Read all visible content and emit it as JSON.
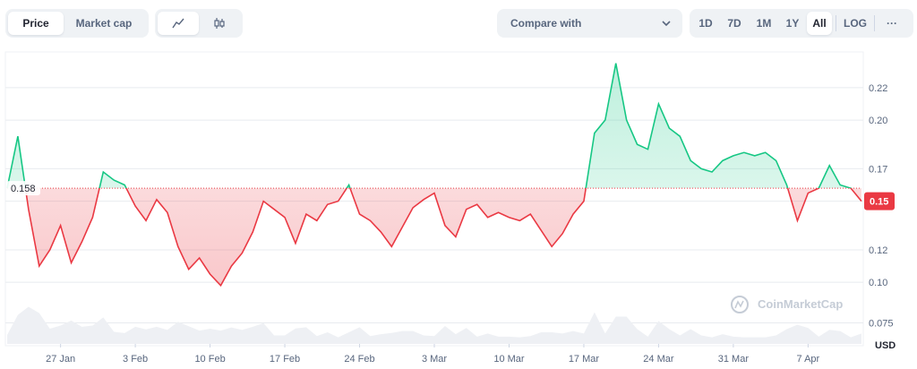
{
  "toolbar": {
    "price_label": "Price",
    "market_cap_label": "Market cap",
    "line_icon": "line-chart-icon",
    "candle_icon": "candlestick-icon",
    "compare_label": "Compare with",
    "ranges": [
      "1D",
      "7D",
      "1M",
      "1Y",
      "All"
    ],
    "active_range": "All",
    "log_label": "LOG",
    "more_label": "···"
  },
  "chart_data": {
    "type": "line",
    "title": "",
    "xlabel": "",
    "ylabel": "USD",
    "currency_label": "USD",
    "x_ticks": [
      "27 Jan",
      "3 Feb",
      "10 Feb",
      "17 Feb",
      "24 Feb",
      "3 Mar",
      "10 Mar",
      "17 Mar",
      "24 Mar",
      "31 Mar",
      "7 Apr"
    ],
    "y_ticks": [
      "0.075",
      "0.10",
      "0.12",
      "0.15",
      "0.17",
      "0.20",
      "0.22"
    ],
    "ylim": [
      0.062,
      0.242
    ],
    "baseline_value": 0.158,
    "baseline_label": "0.158",
    "current_value": 0.15,
    "current_label": "0.15",
    "colors": {
      "up": "#16c784",
      "down": "#ea3943",
      "grid": "#e8ebef",
      "volume": "#d8dde5"
    },
    "watermark": "CoinMarketCap",
    "series": [
      {
        "x": [
          "Jan 22",
          "Jan 23",
          "Jan 24",
          "Jan 25",
          "Jan 26",
          "Jan 27",
          "Jan 28",
          "Jan 29",
          "Jan 30",
          "Jan 31",
          "Feb 1",
          "Feb 2",
          "Feb 3",
          "Feb 4",
          "Feb 5",
          "Feb 6",
          "Feb 7",
          "Feb 8",
          "Feb 9",
          "Feb 10",
          "Feb 11",
          "Feb 12",
          "Feb 13",
          "Feb 14",
          "Feb 15",
          "Feb 16",
          "Feb 17",
          "Feb 18",
          "Feb 19",
          "Feb 20",
          "Feb 21",
          "Feb 22",
          "Feb 23",
          "Feb 24",
          "Feb 25",
          "Feb 26",
          "Feb 27",
          "Feb 28",
          "Mar 1",
          "Mar 2",
          "Mar 3",
          "Mar 4",
          "Mar 5",
          "Mar 6",
          "Mar 7",
          "Mar 8",
          "Mar 9",
          "Mar 10",
          "Mar 11",
          "Mar 12",
          "Mar 13",
          "Mar 14",
          "Mar 15",
          "Mar 16",
          "Mar 17",
          "Mar 18",
          "Mar 19",
          "Mar 20",
          "Mar 21",
          "Mar 22",
          "Mar 23",
          "Mar 24",
          "Mar 25",
          "Mar 26",
          "Mar 27",
          "Mar 28",
          "Mar 29",
          "Mar 30",
          "Mar 31",
          "Apr 1",
          "Apr 2",
          "Apr 3",
          "Apr 4",
          "Apr 5",
          "Apr 6",
          "Apr 7",
          "Apr 8",
          "Apr 9",
          "Apr 10",
          "Apr 11",
          "Apr 12"
        ],
        "values": [
          0.158,
          0.19,
          0.145,
          0.11,
          0.12,
          0.135,
          0.112,
          0.125,
          0.14,
          0.168,
          0.163,
          0.16,
          0.147,
          0.138,
          0.151,
          0.143,
          0.122,
          0.108,
          0.115,
          0.105,
          0.098,
          0.11,
          0.118,
          0.131,
          0.15,
          0.145,
          0.14,
          0.124,
          0.142,
          0.138,
          0.148,
          0.15,
          0.16,
          0.142,
          0.138,
          0.131,
          0.122,
          0.134,
          0.146,
          0.151,
          0.155,
          0.135,
          0.128,
          0.145,
          0.148,
          0.14,
          0.143,
          0.14,
          0.138,
          0.142,
          0.132,
          0.122,
          0.13,
          0.142,
          0.15,
          0.192,
          0.2,
          0.235,
          0.2,
          0.185,
          0.182,
          0.21,
          0.195,
          0.19,
          0.175,
          0.17,
          0.168,
          0.175,
          0.178,
          0.18,
          0.178,
          0.18,
          0.175,
          0.16,
          0.138,
          0.155,
          0.158,
          0.172,
          0.16,
          0.158,
          0.15
        ]
      }
    ]
  }
}
